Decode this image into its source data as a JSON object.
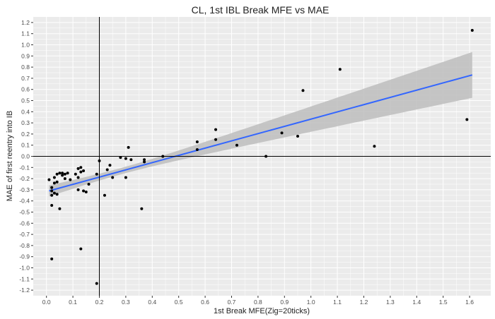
{
  "chart_data": {
    "type": "scatter",
    "title": "CL, 1st IBL Break MFE vs MAE",
    "xlabel": "1st Break MFE(Zig=20ticks)",
    "ylabel": "MAE of first reentry into IB",
    "xlim": [
      -0.05,
      1.68
    ],
    "ylim": [
      -1.25,
      1.25
    ],
    "x_ticks": [
      "0.0",
      "0.1",
      "0.2",
      "0.3",
      "0.4",
      "0.5",
      "0.6",
      "0.7",
      "0.8",
      "0.9",
      "1.0",
      "1.1",
      "1.2",
      "1.3",
      "1.4",
      "1.5",
      "1.6"
    ],
    "y_ticks": [
      "-1.2",
      "-1.1",
      "-1.0",
      "-0.9",
      "-0.8",
      "-0.7",
      "-0.6",
      "-0.5",
      "-0.4",
      "-0.3",
      "-0.2",
      "-0.1",
      "0.0",
      "0.1",
      "0.2",
      "0.3",
      "0.4",
      "0.5",
      "0.6",
      "0.7",
      "0.8",
      "0.9",
      "1.0",
      "1.1",
      "1.2"
    ],
    "grid": true,
    "reference_lines": {
      "x": 0.2,
      "y": 0.0
    },
    "points": [
      [
        0.01,
        -0.21
      ],
      [
        0.02,
        -0.28
      ],
      [
        0.02,
        -0.31
      ],
      [
        0.02,
        -0.35
      ],
      [
        0.02,
        -0.44
      ],
      [
        0.02,
        -0.92
      ],
      [
        0.03,
        -0.19
      ],
      [
        0.03,
        -0.24
      ],
      [
        0.03,
        -0.33
      ],
      [
        0.04,
        -0.16
      ],
      [
        0.04,
        -0.23
      ],
      [
        0.04,
        -0.34
      ],
      [
        0.05,
        -0.15
      ],
      [
        0.05,
        -0.47
      ],
      [
        0.06,
        -0.17
      ],
      [
        0.06,
        -0.15
      ],
      [
        0.07,
        -0.16
      ],
      [
        0.07,
        -0.2
      ],
      [
        0.08,
        -0.15
      ],
      [
        0.09,
        -0.21
      ],
      [
        0.11,
        -0.16
      ],
      [
        0.12,
        -0.11
      ],
      [
        0.12,
        -0.19
      ],
      [
        0.12,
        -0.3
      ],
      [
        0.13,
        -0.1
      ],
      [
        0.13,
        -0.14
      ],
      [
        0.13,
        -0.83
      ],
      [
        0.14,
        -0.13
      ],
      [
        0.14,
        -0.31
      ],
      [
        0.15,
        -0.32
      ],
      [
        0.16,
        -0.25
      ],
      [
        0.19,
        -0.16
      ],
      [
        0.19,
        -1.14
      ],
      [
        0.2,
        -0.04
      ],
      [
        0.22,
        -0.35
      ],
      [
        0.23,
        -0.12
      ],
      [
        0.24,
        -0.08
      ],
      [
        0.25,
        -0.19
      ],
      [
        0.28,
        -0.01
      ],
      [
        0.3,
        -0.02
      ],
      [
        0.3,
        -0.19
      ],
      [
        0.31,
        0.08
      ],
      [
        0.32,
        -0.03
      ],
      [
        0.36,
        -0.47
      ],
      [
        0.37,
        -0.03
      ],
      [
        0.37,
        -0.05
      ],
      [
        0.44,
        0.0
      ],
      [
        0.57,
        0.13
      ],
      [
        0.57,
        0.06
      ],
      [
        0.64,
        0.24
      ],
      [
        0.64,
        0.15
      ],
      [
        0.72,
        0.1
      ],
      [
        0.83,
        0.0
      ],
      [
        0.89,
        0.21
      ],
      [
        0.95,
        0.18
      ],
      [
        0.97,
        0.59
      ],
      [
        1.11,
        0.78
      ],
      [
        1.24,
        0.09
      ],
      [
        1.59,
        0.33
      ],
      [
        1.61,
        1.13
      ]
    ],
    "trend": {
      "method": "linear",
      "x_range": [
        0.01,
        1.61
      ],
      "y_at_x_range": [
        -0.31,
        0.73
      ],
      "band_at_x_range": [
        [
          -0.36,
          -0.26
        ],
        [
          0.53,
          0.94
        ]
      ],
      "line_color": "#3366ff",
      "band_color": "#bdbdbd"
    },
    "colors": {
      "panel": "#ebebeb",
      "grid": "#ffffff",
      "point": "#000000"
    }
  }
}
